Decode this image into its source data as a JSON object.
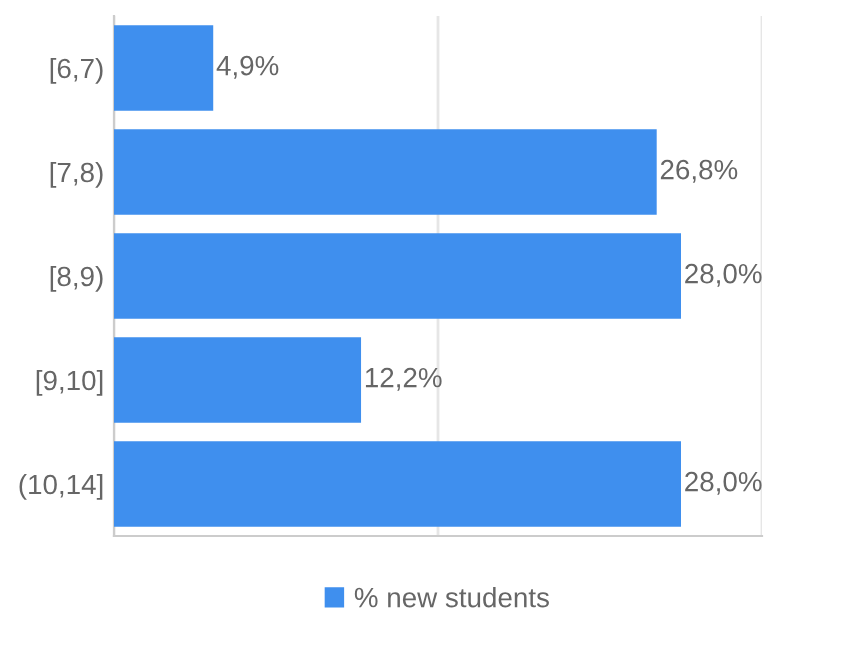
{
  "chart_data": {
    "type": "bar",
    "orientation": "horizontal",
    "categories": [
      "[6,7)",
      "[7,8)",
      "[8,9)",
      "[9,10]",
      "(10,14]"
    ],
    "series": [
      {
        "name": "% new students",
        "color": "#3f8fee",
        "values": [
          4.9,
          26.8,
          28.0,
          12.2,
          28.0
        ],
        "value_labels": [
          "4,9%",
          "26,8%",
          "28,0%",
          "12,2%",
          "28,0%"
        ]
      }
    ],
    "xlim": [
      0,
      32
    ],
    "xticks": [
      {
        "value": 0,
        "label": null
      },
      {
        "value": 16,
        "label": null
      },
      {
        "value": 32,
        "label": null
      }
    ],
    "grid": "x",
    "tick_labels": "y",
    "legend": "bottom"
  }
}
